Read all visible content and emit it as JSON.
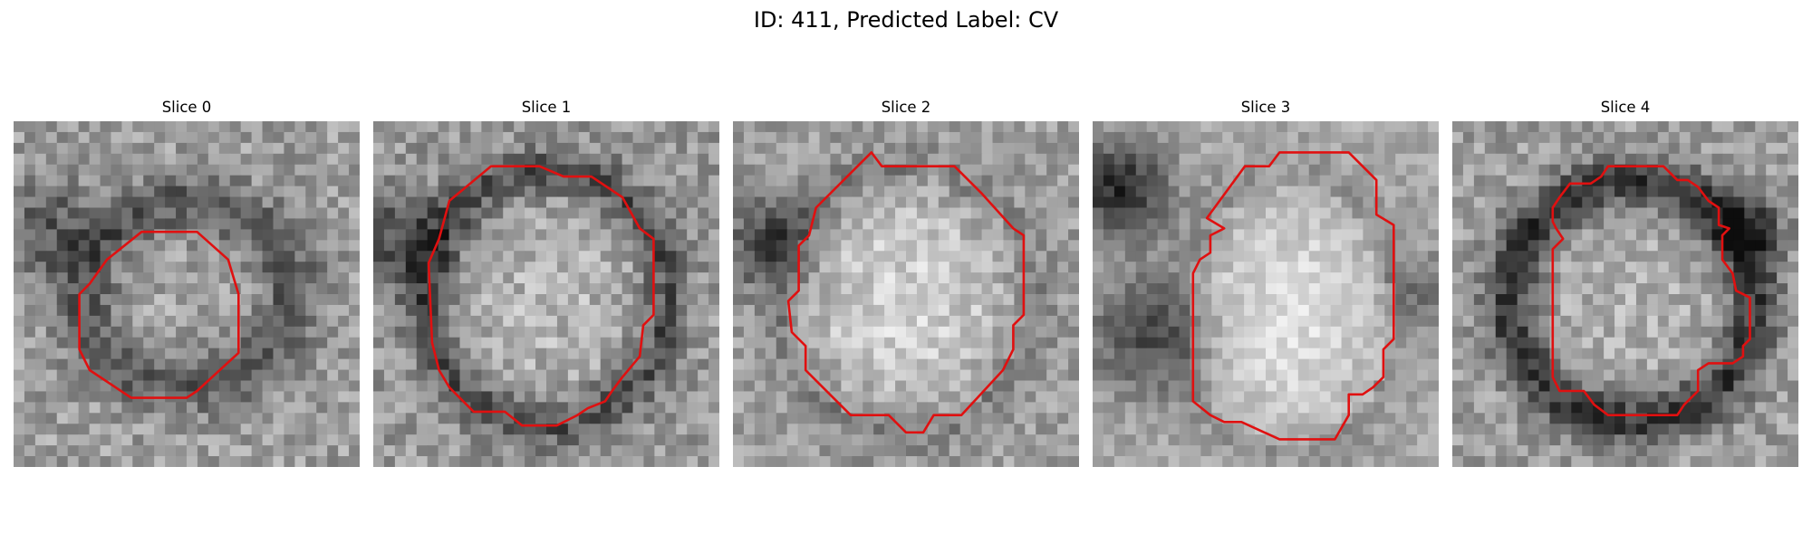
{
  "figure": {
    "title": "ID: 411, Predicted Label: CV",
    "contour_color": "#e01010"
  },
  "slices": [
    {
      "title": "Slice 0"
    },
    {
      "title": "Slice 1"
    },
    {
      "title": "Slice 2"
    },
    {
      "title": "Slice 3"
    },
    {
      "title": "Slice 4"
    }
  ]
}
